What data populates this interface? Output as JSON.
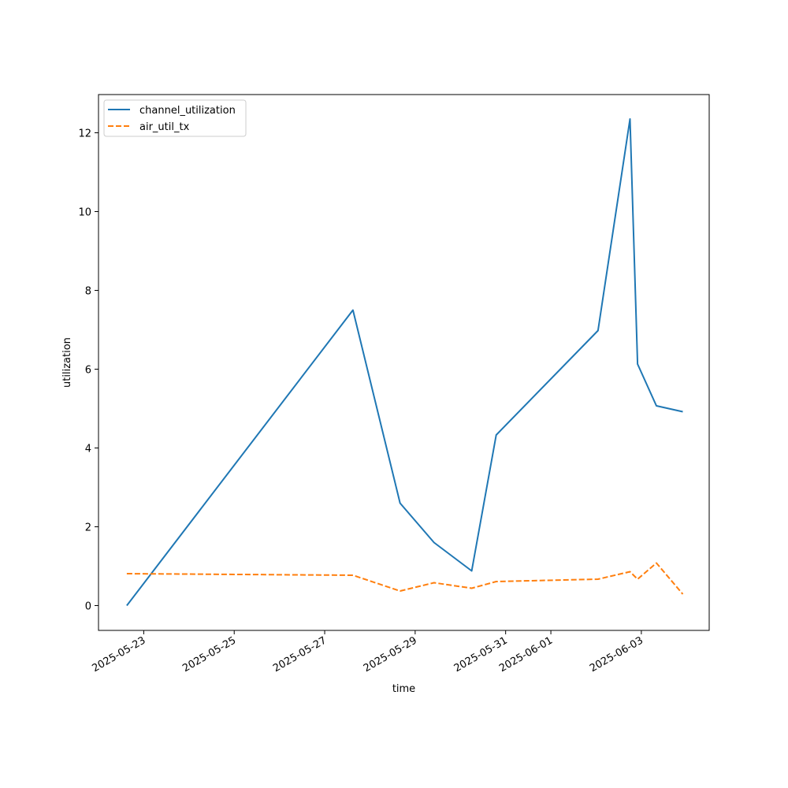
{
  "chart_data": {
    "type": "line",
    "title": "",
    "xlabel": "time",
    "ylabel": "utilization",
    "x": [
      "2025-05-22T15:00",
      "2025-05-27T15:00",
      "2025-05-28T16:00",
      "2025-05-29T10:00",
      "2025-05-30T06:00",
      "2025-05-30T19:00",
      "2025-06-02T01:00",
      "2025-06-02T18:00",
      "2025-06-02T22:00",
      "2025-06-03T08:00",
      "2025-06-03T22:00"
    ],
    "series": [
      {
        "name": "channel_utilization",
        "color": "#1f77b4",
        "style": "solid",
        "values": [
          0.0,
          7.5,
          2.6,
          1.6,
          0.88,
          4.33,
          6.98,
          12.35,
          6.13,
          5.07,
          4.92
        ]
      },
      {
        "name": "air_util_tx",
        "color": "#ff7f0e",
        "style": "dashed",
        "values": [
          0.81,
          0.77,
          0.37,
          0.58,
          0.44,
          0.61,
          0.67,
          0.86,
          0.67,
          1.08,
          0.29
        ]
      }
    ],
    "xlim": [
      "2025-05-22T00:00",
      "2025-06-04T12:00"
    ],
    "ylim": [
      -0.63,
      12.97
    ],
    "xticks": [
      "2025-05-23",
      "2025-05-25",
      "2025-05-27",
      "2025-05-29",
      "2025-05-31",
      "2025-06-01",
      "2025-06-03"
    ],
    "yticks": [
      0,
      2,
      4,
      6,
      8,
      10,
      12
    ],
    "grid": false,
    "legend_position": "upper-left"
  }
}
